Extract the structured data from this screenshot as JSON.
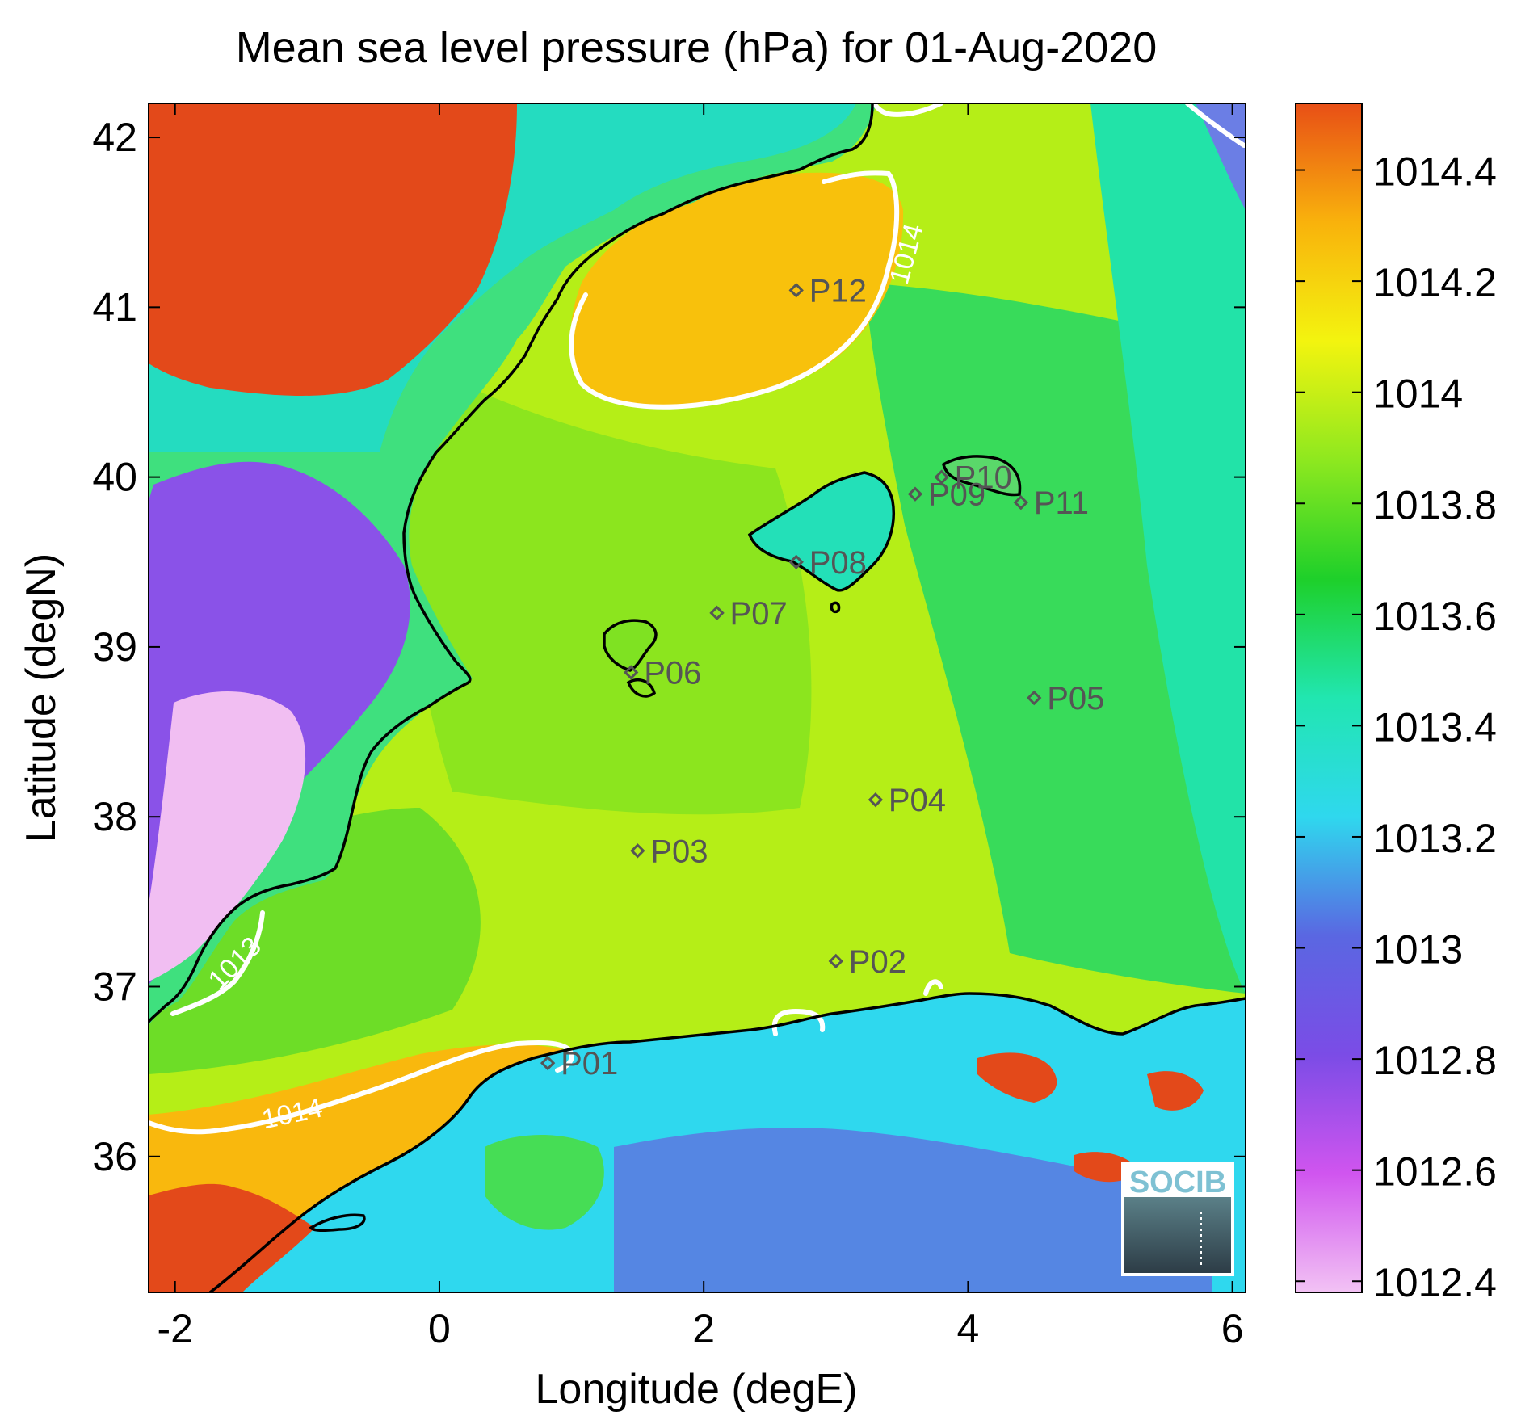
{
  "title": "Mean sea level pressure (hPa) for 01-Aug-2020",
  "xlabel": "Longitude (degE)",
  "ylabel": "Latitude (degN)",
  "xlim": [
    -2.2,
    6.1
  ],
  "ylim": [
    35.2,
    42.2
  ],
  "x_ticks": [
    {
      "value": -2,
      "label": "-2"
    },
    {
      "value": 0,
      "label": "0"
    },
    {
      "value": 2,
      "label": "2"
    },
    {
      "value": 4,
      "label": "4"
    },
    {
      "value": 6,
      "label": "6"
    }
  ],
  "y_ticks": [
    {
      "value": 36,
      "label": "36"
    },
    {
      "value": 37,
      "label": "37"
    },
    {
      "value": 38,
      "label": "38"
    },
    {
      "value": 39,
      "label": "39"
    },
    {
      "value": 40,
      "label": "40"
    },
    {
      "value": 41,
      "label": "41"
    },
    {
      "value": 42,
      "label": "42"
    }
  ],
  "colorbar": {
    "min": 1012.38,
    "max": 1014.52,
    "ticks": [
      {
        "value": 1012.4,
        "label": "1012.4"
      },
      {
        "value": 1012.6,
        "label": "1012.6"
      },
      {
        "value": 1012.8,
        "label": "1012.8"
      },
      {
        "value": 1013.0,
        "label": "1013"
      },
      {
        "value": 1013.2,
        "label": "1013.2"
      },
      {
        "value": 1013.4,
        "label": "1013.4"
      },
      {
        "value": 1013.6,
        "label": "1013.6"
      },
      {
        "value": 1013.8,
        "label": "1013.8"
      },
      {
        "value": 1014.0,
        "label": "1014"
      },
      {
        "value": 1014.2,
        "label": "1014.2"
      },
      {
        "value": 1014.4,
        "label": "1014.4"
      }
    ],
    "colors": [
      "#f2c2f4",
      "#d055ef",
      "#7b4ce6",
      "#5a67e2",
      "#2fd8ee",
      "#21e6b0",
      "#1ed02a",
      "#8ee81f",
      "#f3f40f",
      "#f9b20c",
      "#e84f16"
    ]
  },
  "contour_labels": [
    {
      "text": "1014",
      "lon": 3.6,
      "lat": 41.3
    },
    {
      "text": "1013",
      "lon": -1.5,
      "lat": 37.1
    },
    {
      "text": "1014",
      "lon": -1.1,
      "lat": 36.2
    }
  ],
  "points": [
    {
      "label": "P01",
      "lon": 0.82,
      "lat": 36.55
    },
    {
      "label": "P02",
      "lon": 3.0,
      "lat": 37.15
    },
    {
      "label": "P03",
      "lon": 1.5,
      "lat": 37.8
    },
    {
      "label": "P04",
      "lon": 3.3,
      "lat": 38.1
    },
    {
      "label": "P05",
      "lon": 4.5,
      "lat": 38.7
    },
    {
      "label": "P06",
      "lon": 1.45,
      "lat": 38.85
    },
    {
      "label": "P07",
      "lon": 2.1,
      "lat": 39.2
    },
    {
      "label": "P08",
      "lon": 2.7,
      "lat": 39.5
    },
    {
      "label": "P09",
      "lon": 3.6,
      "lat": 39.9
    },
    {
      "label": "P10",
      "lon": 3.8,
      "lat": 40.0
    },
    {
      "label": "P11",
      "lon": 4.4,
      "lat": 39.85
    },
    {
      "label": "P12",
      "lon": 2.7,
      "lat": 41.1
    }
  ],
  "logo": {
    "text": "SOCIB"
  },
  "colors": {
    "land_high": "#e3491a",
    "land_low": "#f1bef2",
    "coastline": "#000000",
    "contour": "#ffffff",
    "marker": "#555555"
  }
}
